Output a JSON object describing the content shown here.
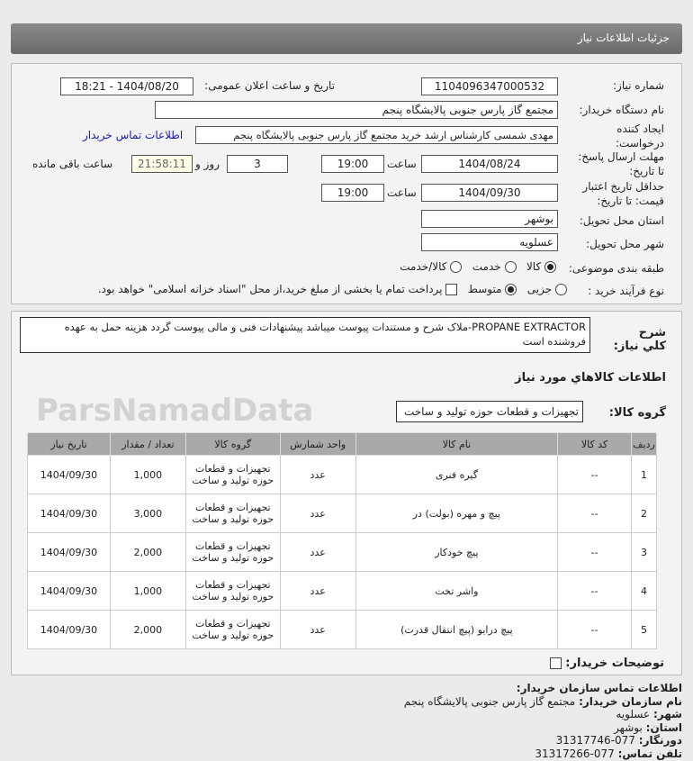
{
  "header": {
    "title": "جزئیات اطلاعات نیاز"
  },
  "form": {
    "need_number_label": "شماره نیاز:",
    "need_number": "1104096347000532",
    "announce_label": "تاریخ و ساعت اعلان عمومی:",
    "announce_value": "1404/08/20 - 18:21",
    "buyer_label": "نام دستگاه خریدار:",
    "buyer": "مجتمع گاز پارس جنوبی  پالایشگاه پنجم",
    "creator_label_1": "ایجاد کننده",
    "creator_label_2": "درخواست:",
    "creator": "مهدی شمسی کارشناس ارشد خرید مجتمع گاز پارس جنوبی  پالایشگاه پنجم",
    "contact_link": "اطلاعات تماس خریدار",
    "deadline_label_1": "مهلت ارسال پاسخ:",
    "deadline_label_2": "تا تاریخ:",
    "deadline_date": "1404/08/24",
    "time_label": "ساعت",
    "deadline_time": "19:00",
    "days": "3",
    "days_label": "روز و",
    "remaining": "21:58:11",
    "remaining_label": "ساعت باقی مانده",
    "validity_label_1": "حداقل تاریخ اعتبار",
    "validity_label_2": "قیمت: تا تاریخ:",
    "validity_date": "1404/09/30",
    "validity_time": "19:00",
    "province_label": "استان محل تحویل:",
    "province": "بوشهر",
    "city_label": "شهر محل تحویل:",
    "city": "عسلویه",
    "category_label": "طبقه بندی موضوعی:",
    "category_options": [
      "کالا",
      "خدمت",
      "کالا/خدمت"
    ],
    "category_selected": "کالا",
    "process_label": "نوع فرآیند خرید :",
    "process_options": [
      "جزیی",
      "متوسط"
    ],
    "process_selected": "متوسط",
    "payment_note": "پرداخت تمام یا بخشی از مبلغ خرید،از محل \"اسناد خزانه اسلامی\" خواهد بود."
  },
  "description": {
    "label": "شرح کلي نیاز:",
    "text": "PROPANE EXTRACTOR-ملاک شرح و مستندات پیوست میباشد پیشنهادات فنی و مالی پیوست گردد هزینه حمل به عهده فروشنده است"
  },
  "goods": {
    "section_title": "اطلاعات کالاهاي مورد نیاز",
    "group_label": "گروه کالا:",
    "group": "تجهیزات و قطعات حوزه تولید و ساخت",
    "columns": [
      "ردیف",
      "کد کالا",
      "نام کالا",
      "واحد شمارش",
      "گروه کالا",
      "تعداد / مقدار",
      "تاریخ نیاز"
    ],
    "rows": [
      [
        "1",
        "--",
        "گیره فنری",
        "عدد",
        "تجهیزات و قطعات حوزه تولید و ساخت",
        "1,000",
        "1404/09/30"
      ],
      [
        "2",
        "--",
        "پیچ و مهره (بولت) در",
        "عدد",
        "تجهیزات و قطعات حوزه تولید و ساخت",
        "3,000",
        "1404/09/30"
      ],
      [
        "3",
        "--",
        "پیچ خودکار",
        "عدد",
        "تجهیزات و قطعات حوزه تولید و ساخت",
        "2,000",
        "1404/09/30"
      ],
      [
        "4",
        "--",
        "واشر تخت",
        "عدد",
        "تجهیزات و قطعات حوزه تولید و ساخت",
        "1,000",
        "1404/09/30"
      ],
      [
        "5",
        "--",
        "پیچ درایو (پیچ انتقال قدرت)",
        "عدد",
        "تجهیزات و قطعات حوزه تولید و ساخت",
        "2,000",
        "1404/09/30"
      ]
    ]
  },
  "buyer_notes_label": "توضیحات خریدار:",
  "contact": {
    "title": "اطلاعات تماس سازمان خریدار:",
    "org_label": "نام سازمان خریدار:",
    "org": "مجتمع گاز پارس جنوبی پالایشگاه پنجم",
    "city_label": "شهر:",
    "city": "عسلویه",
    "province_label": "استان:",
    "province": "بوشهر",
    "fax_label": "دورنگار:",
    "fax": "077-31317746",
    "phone_label": "تلفن تماس:",
    "phone": "077-31317266"
  },
  "watermark": "ParsNamadData"
}
